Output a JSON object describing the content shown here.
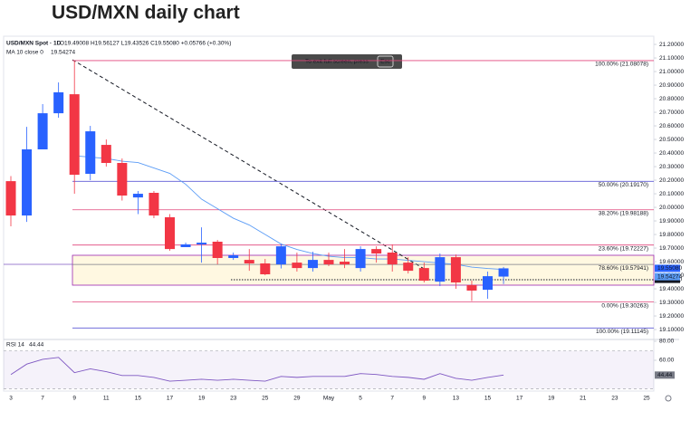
{
  "chart_data": {
    "type": "candlestick",
    "title": "USD/MXN daily chart",
    "symbol": "USD/MXN Spot · 1D",
    "legend_text": "O19.49008 H19.56127 L19.43526 C19.55080 +0.05766 (+0.30%)",
    "ma_label": "MA 10 close 0",
    "tooltip": {
      "text": "To exit full screen, press",
      "key": "Esc"
    },
    "categories": [
      "3",
      null,
      "7",
      null,
      "9",
      null,
      "11",
      null,
      "15",
      null,
      "17",
      null,
      "19",
      null,
      "23",
      null,
      "25",
      null,
      "29",
      null,
      "May",
      null,
      "5",
      null,
      "7",
      null,
      "9",
      null,
      "13",
      null,
      "15",
      null,
      "17",
      null,
      "19",
      null,
      "21",
      null,
      "23",
      null,
      "25"
    ],
    "open": [
      20.193,
      19.94,
      20.427,
      20.693,
      20.833,
      20.247,
      20.46,
      20.327,
      20.073,
      20.107,
      19.927,
      19.707,
      19.727,
      19.747,
      19.627,
      19.613,
      19.587,
      19.58,
      19.593,
      19.553,
      19.613,
      19.6,
      19.553,
      19.693,
      19.667,
      19.593,
      19.553,
      19.453,
      19.633,
      19.427,
      19.393,
      19.49008,
      null,
      null,
      null,
      null,
      null,
      null,
      null,
      null,
      null
    ],
    "high": [
      20.23,
      20.593,
      20.76,
      20.92,
      21.08,
      20.6,
      20.5,
      20.36,
      20.12,
      20.12,
      19.95,
      19.74,
      19.853,
      19.76,
      19.667,
      19.693,
      19.62,
      19.73,
      19.667,
      19.673,
      19.667,
      19.693,
      19.713,
      19.713,
      19.727,
      19.633,
      19.593,
      19.66,
      19.653,
      19.46,
      19.527,
      19.56127,
      null,
      null,
      null,
      null,
      null,
      null,
      null,
      null,
      null
    ],
    "low": [
      19.86,
      19.893,
      20.43,
      20.66,
      20.1,
      20.2,
      20.3,
      20.05,
      19.95,
      19.92,
      19.68,
      19.707,
      19.593,
      19.58,
      19.613,
      19.533,
      19.5,
      19.55,
      19.527,
      19.527,
      19.567,
      19.553,
      19.527,
      19.593,
      19.527,
      19.513,
      19.447,
      19.42,
      19.4,
      19.31,
      19.327,
      19.43526,
      null,
      null,
      null,
      null,
      null,
      null,
      null,
      null,
      null
    ],
    "close": [
      19.94,
      20.427,
      20.693,
      20.847,
      20.24,
      20.56,
      20.327,
      20.087,
      20.1,
      19.94,
      19.693,
      19.727,
      19.74,
      19.627,
      19.647,
      19.587,
      19.507,
      19.713,
      19.553,
      19.613,
      19.58,
      19.58,
      19.693,
      19.66,
      19.58,
      19.533,
      19.46,
      19.633,
      19.447,
      19.387,
      19.493,
      19.5508,
      null,
      null,
      null,
      null,
      null,
      null,
      null,
      null,
      null
    ],
    "up_color": "#2962ff",
    "down_color": "#f23645",
    "ma": {
      "color": "#5b9cf6",
      "values": [
        null,
        null,
        null,
        null,
        20.38,
        20.37,
        20.36,
        20.34,
        20.33,
        20.29,
        20.25,
        20.17,
        20.06,
        19.99,
        19.92,
        19.87,
        19.8,
        19.73,
        19.69,
        19.66,
        19.64,
        19.63,
        19.63,
        19.62,
        19.62,
        19.61,
        19.6,
        19.59,
        19.58,
        19.56,
        19.55,
        19.54274,
        null,
        null,
        null,
        null,
        null,
        null,
        null,
        null,
        null
      ]
    },
    "ylim": [
      19.027,
      21.227
    ],
    "yticks": [
      {
        "value": 21.2,
        "label": "21.20000"
      },
      {
        "value": 21.1,
        "label": "21.10000"
      },
      {
        "value": 21.0,
        "label": "21.00000"
      },
      {
        "value": 20.9,
        "label": "20.90000"
      },
      {
        "value": 20.8,
        "label": "20.80000"
      },
      {
        "value": 20.7,
        "label": "20.70000"
      },
      {
        "value": 20.6,
        "label": "20.60000"
      },
      {
        "value": 20.5,
        "label": "20.50000"
      },
      {
        "value": 20.4,
        "label": "20.40000"
      },
      {
        "value": 20.3,
        "label": "20.30000"
      },
      {
        "value": 20.2,
        "label": "20.20000"
      },
      {
        "value": 20.1,
        "label": "20.10000"
      },
      {
        "value": 20.0,
        "label": "20.00000"
      },
      {
        "value": 19.9,
        "label": "19.90000"
      },
      {
        "value": 19.8,
        "label": "19.80000"
      },
      {
        "value": 19.7,
        "label": "19.70000"
      },
      {
        "value": 19.6,
        "label": "19.60000"
      },
      {
        "value": 19.5,
        "label": "19.50000"
      },
      {
        "value": 19.4,
        "label": "19.40000"
      },
      {
        "value": 19.3,
        "label": "19.30000"
      },
      {
        "value": 19.2,
        "label": "19.20000"
      },
      {
        "value": 19.1,
        "label": "19.10000"
      }
    ],
    "fib_levels": [
      {
        "label": "100.00% (21.08078)",
        "value": 21.08078,
        "color": "#e0457b"
      },
      {
        "label": "50.00% (20.19170)",
        "value": 20.1917,
        "color": "#5e5ad6"
      },
      {
        "label": "38.20% (19.98188)",
        "value": 19.98188,
        "color": "#e0457b"
      },
      {
        "label": "23.60% (19.72227)",
        "value": 19.72227,
        "color": "#e0457b"
      },
      {
        "label": "78.60% (19.57941)",
        "value": 19.57941,
        "color": "#787b86"
      },
      {
        "label": "0.00% (19.30263)",
        "value": 19.30263,
        "color": "#e0457b"
      },
      {
        "label": "100.00% (19.11145)",
        "value": 19.11145,
        "color": "#5e5ad6"
      }
    ],
    "price_labels": [
      {
        "value": 19.5508,
        "label": "19.55080",
        "color": "#2962ff"
      },
      {
        "value": 19.4698,
        "label": "19.46980",
        "color": "#131722"
      }
    ],
    "rsi": {
      "label": "RSI 14",
      "color": "#7e57c2",
      "values": [
        45,
        56,
        61,
        63,
        47,
        51,
        48,
        44,
        44,
        42,
        38,
        39,
        40,
        39,
        40,
        39,
        38,
        43,
        42,
        43,
        43,
        43,
        46,
        45,
        43,
        42,
        40,
        46,
        41,
        39,
        42,
        44.44,
        null,
        null,
        null,
        null,
        null,
        null,
        null,
        null,
        null
      ],
      "ylim": [
        27.6,
        81.9
      ],
      "yticks": [
        {
          "value": 80,
          "label": "80.00"
        },
        {
          "value": 60,
          "label": "60.00"
        }
      ],
      "bands": [
        70,
        30
      ]
    }
  }
}
